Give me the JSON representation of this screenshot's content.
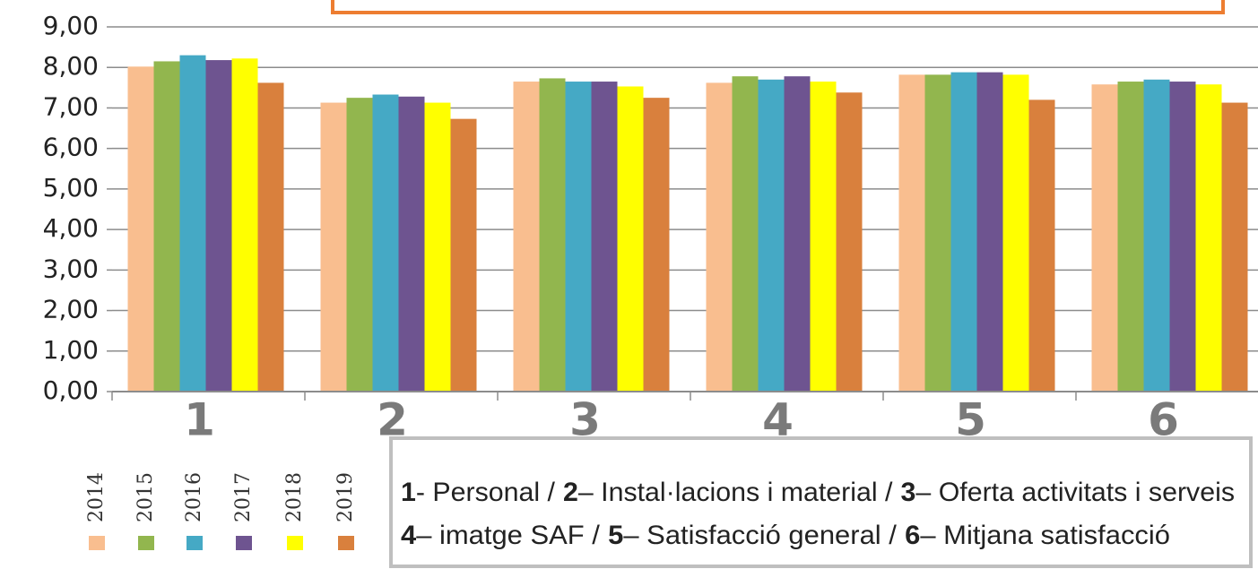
{
  "chart_data": {
    "type": "bar",
    "categories": [
      "1",
      "2",
      "3",
      "4",
      "5",
      "6"
    ],
    "series": [
      {
        "name": "2014",
        "color": "#f9be8f",
        "values": [
          8.02,
          7.13,
          7.65,
          7.62,
          7.82,
          7.58
        ]
      },
      {
        "name": "2015",
        "color": "#92b64e",
        "values": [
          8.15,
          7.25,
          7.73,
          7.78,
          7.82,
          7.65
        ]
      },
      {
        "name": "2016",
        "color": "#45a9c5",
        "values": [
          8.3,
          7.33,
          7.65,
          7.7,
          7.88,
          7.7
        ]
      },
      {
        "name": "2017",
        "color": "#6e5490",
        "values": [
          8.18,
          7.28,
          7.65,
          7.78,
          7.88,
          7.65
        ]
      },
      {
        "name": "2018",
        "color": "#ffff00",
        "values": [
          8.22,
          7.13,
          7.53,
          7.65,
          7.82,
          7.58
        ]
      },
      {
        "name": "2019",
        "color": "#d9803d",
        "values": [
          7.62,
          6.73,
          7.25,
          7.38,
          7.2,
          7.13
        ]
      }
    ],
    "ylim": [
      0,
      9
    ],
    "yticks": [
      {
        "value": 0,
        "label": "0,00"
      },
      {
        "value": 1,
        "label": "1,00"
      },
      {
        "value": 2,
        "label": "2,00"
      },
      {
        "value": 3,
        "label": "3,00"
      },
      {
        "value": 4,
        "label": "4,00"
      },
      {
        "value": 5,
        "label": "5,00"
      },
      {
        "value": 6,
        "label": "6,00"
      },
      {
        "value": 7,
        "label": "7,00"
      },
      {
        "value": 8,
        "label": "8,00"
      },
      {
        "value": 9,
        "label": "9,00"
      }
    ],
    "grid": true,
    "notes": [
      [
        {
          "number": "1",
          "text": "- Personal /"
        },
        {
          "number": "2",
          "text": "– Instal·lacions i material /"
        },
        {
          "number": "3",
          "text": "– Oferta activitats i serveis"
        }
      ],
      [
        {
          "number": "4",
          "text": "– imatge SAF /"
        },
        {
          "number": "5",
          "text": "– Satisfacció general /"
        },
        {
          "number": "6",
          "text": "– Mitjana satisfacció"
        }
      ]
    ]
  }
}
